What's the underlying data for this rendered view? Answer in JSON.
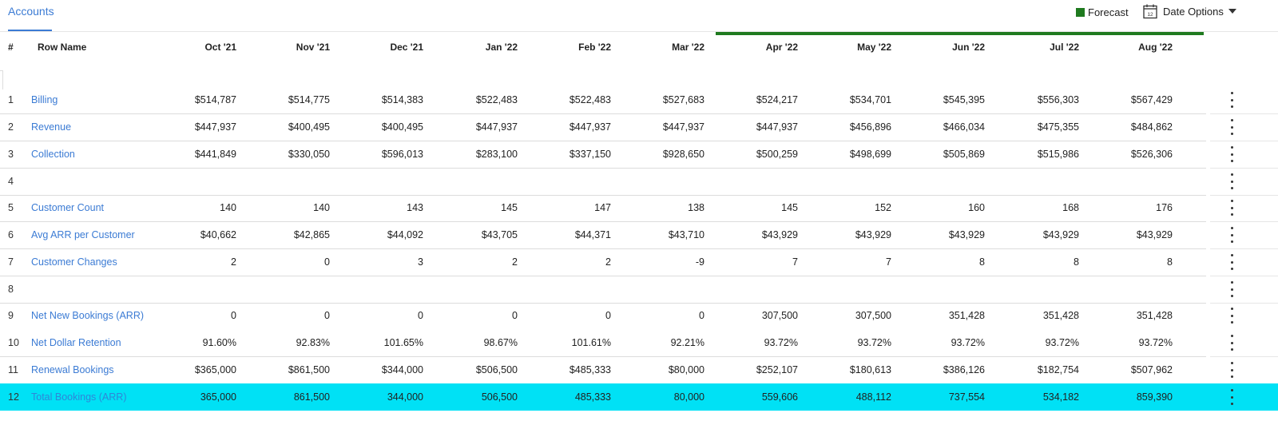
{
  "tabs": {
    "accounts": "Accounts"
  },
  "toolbar": {
    "forecast_label": "Forecast",
    "date_options_label": "Date Options",
    "calendar_day": "12"
  },
  "colors": {
    "forecast": "#1f7a1f",
    "link": "#3b7bd4",
    "highlight": "#00e1f5"
  },
  "table": {
    "header": {
      "num": "#",
      "name": "Row Name"
    },
    "columns": [
      "Oct '21",
      "Nov '21",
      "Dec '21",
      "Jan '22",
      "Feb '22",
      "Mar '22",
      "Apr '22",
      "May '22",
      "Jun '22",
      "Jul '22",
      "Aug '22"
    ],
    "rows": [
      {
        "num": "1",
        "name": "Billing",
        "values": [
          "$514,787",
          "$514,775",
          "$514,383",
          "$522,483",
          "$522,483",
          "$527,683",
          "$524,217",
          "$534,701",
          "$545,395",
          "$556,303",
          "$567,429"
        ]
      },
      {
        "num": "2",
        "name": "Revenue",
        "values": [
          "$447,937",
          "$400,495",
          "$400,495",
          "$447,937",
          "$447,937",
          "$447,937",
          "$447,937",
          "$456,896",
          "$466,034",
          "$475,355",
          "$484,862"
        ]
      },
      {
        "num": "3",
        "name": "Collection",
        "values": [
          "$441,849",
          "$330,050",
          "$596,013",
          "$283,100",
          "$337,150",
          "$928,650",
          "$500,259",
          "$498,699",
          "$505,869",
          "$515,986",
          "$526,306"
        ]
      },
      {
        "num": "4",
        "name": "",
        "values": [
          "",
          "",
          "",
          "",
          "",
          "",
          "",
          "",
          "",
          "",
          ""
        ]
      },
      {
        "num": "5",
        "name": "Customer Count",
        "values": [
          "140",
          "140",
          "143",
          "145",
          "147",
          "138",
          "145",
          "152",
          "160",
          "168",
          "176"
        ]
      },
      {
        "num": "6",
        "name": "Avg ARR per Customer",
        "values": [
          "$40,662",
          "$42,865",
          "$44,092",
          "$43,705",
          "$44,371",
          "$43,710",
          "$43,929",
          "$43,929",
          "$43,929",
          "$43,929",
          "$43,929"
        ]
      },
      {
        "num": "7",
        "name": "Customer Changes",
        "values": [
          "2",
          "0",
          "3",
          "2",
          "2",
          "-9",
          "7",
          "7",
          "8",
          "8",
          "8"
        ]
      },
      {
        "num": "8",
        "name": "",
        "values": [
          "",
          "",
          "",
          "",
          "",
          "",
          "",
          "",
          "",
          "",
          ""
        ]
      },
      {
        "num": "9",
        "name": "Net New Bookings (ARR)",
        "values": [
          "0",
          "0",
          "0",
          "0",
          "0",
          "0",
          "307,500",
          "307,500",
          "351,428",
          "351,428",
          "351,428"
        ]
      },
      {
        "num": "10",
        "name": "Net Dollar Retention",
        "values": [
          "91.60%",
          "92.83%",
          "101.65%",
          "98.67%",
          "101.61%",
          "92.21%",
          "93.72%",
          "93.72%",
          "93.72%",
          "93.72%",
          "93.72%"
        ]
      },
      {
        "num": "11",
        "name": "Renewal Bookings",
        "values": [
          "$365,000",
          "$861,500",
          "$344,000",
          "$506,500",
          "$485,333",
          "$80,000",
          "$252,107",
          "$180,613",
          "$386,126",
          "$182,754",
          "$507,962"
        ]
      },
      {
        "num": "12",
        "name": "Total Bookings (ARR)",
        "values": [
          "365,000",
          "861,500",
          "344,000",
          "506,500",
          "485,333",
          "80,000",
          "559,606",
          "488,112",
          "737,554",
          "534,182",
          "859,390"
        ],
        "highlighted": true
      }
    ]
  }
}
